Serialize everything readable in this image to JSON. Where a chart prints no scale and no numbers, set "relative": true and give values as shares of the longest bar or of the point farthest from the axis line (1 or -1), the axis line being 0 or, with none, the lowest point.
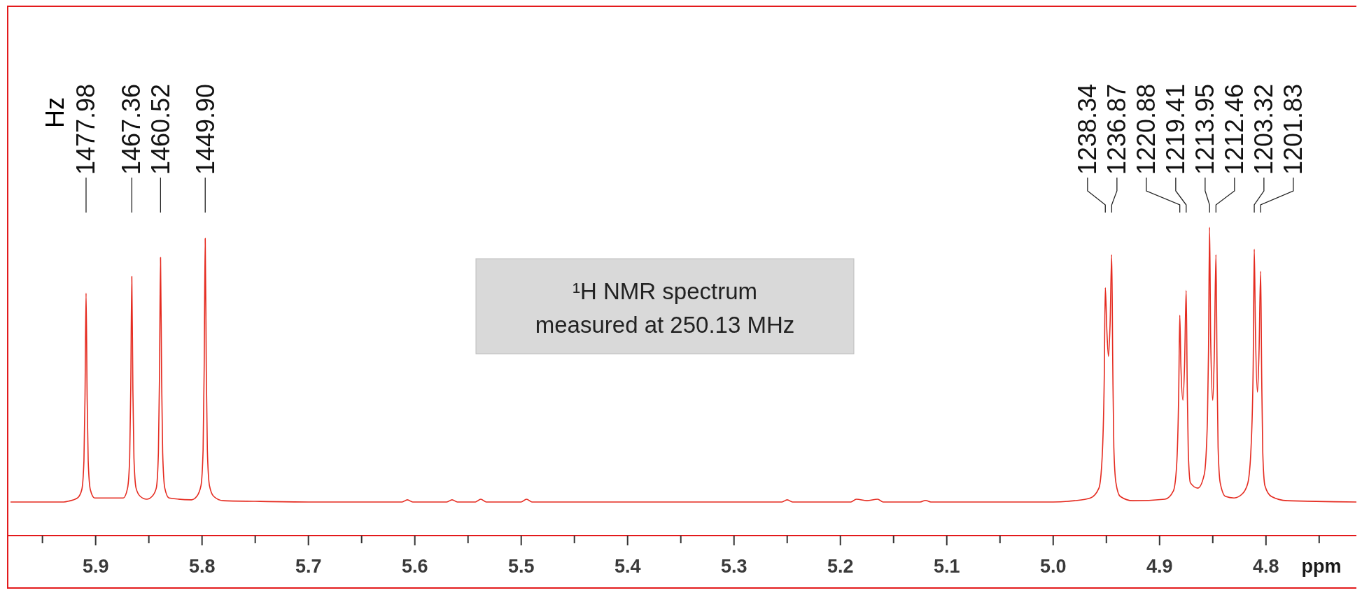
{
  "chart_data": {
    "type": "line",
    "relative": true,
    "xlabel": "ppm",
    "xlim": [
      5.982,
      4.715
    ],
    "xticks": [
      {
        "value": 5.95,
        "label": null
      },
      5.9,
      {
        "value": 5.85,
        "label": null
      },
      5.8,
      {
        "value": 5.75,
        "label": null
      },
      5.7,
      {
        "value": 5.65,
        "label": null
      },
      5.6,
      {
        "value": 5.55,
        "label": null
      },
      5.5,
      {
        "value": 5.45,
        "label": null
      },
      5.4,
      {
        "value": 5.35,
        "label": null
      },
      5.3,
      {
        "value": 5.25,
        "label": null
      },
      5.2,
      {
        "value": 5.15,
        "label": null
      },
      5.1,
      {
        "value": 5.05,
        "label": null
      },
      {
        "value": 5,
        "label": "5.0"
      },
      {
        "value": 4.95,
        "label": null
      },
      4.9,
      {
        "value": 4.85,
        "label": null
      },
      4.8,
      {
        "value": 4.75,
        "label": null
      }
    ],
    "series": [
      {
        "color": "#e52b20",
        "x": [
          5.98,
          5.93,
          5.925,
          5.917,
          5.913,
          5.911,
          5.91,
          5.909,
          5.908,
          5.907,
          5.905,
          5.901,
          5.874,
          5.87,
          5.868,
          5.867,
          5.866,
          5.865,
          5.864,
          5.862,
          5.858,
          5.852,
          5.847,
          5.843,
          5.841,
          5.84,
          5.839,
          5.838,
          5.837,
          5.835,
          5.831,
          5.81,
          5.805,
          5.801,
          5.799,
          5.798,
          5.797,
          5.796,
          5.795,
          5.793,
          5.789,
          5.78,
          5.75,
          5.7,
          5.612,
          5.607,
          5.602,
          5.57,
          5.565,
          5.56,
          5.543,
          5.538,
          5.533,
          5.5,
          5.495,
          5.49,
          5.3,
          5.255,
          5.25,
          5.245,
          5.19,
          5.185,
          5.175,
          5.165,
          5.16,
          5.125,
          5.12,
          5.115,
          5.0,
          4.98,
          4.965,
          4.957,
          4.954,
          4.952,
          4.951,
          4.9495,
          4.948,
          4.9465,
          4.945,
          4.944,
          4.943,
          4.941,
          4.937,
          4.925,
          4.895,
          4.887,
          4.884,
          4.882,
          4.881,
          4.88,
          4.878,
          4.8765,
          4.875,
          4.874,
          4.873,
          4.871,
          4.864,
          4.858,
          4.855,
          4.854,
          4.853,
          4.852,
          4.85,
          4.8485,
          4.847,
          4.846,
          4.845,
          4.843,
          4.838,
          4.83,
          4.822,
          4.817,
          4.814,
          4.812,
          4.811,
          4.81,
          4.808,
          4.8065,
          4.805,
          4.804,
          4.803,
          4.801,
          4.795,
          4.78,
          4.715
        ],
        "values": [
          0.109,
          0.109,
          0.112,
          0.122,
          0.149,
          0.243,
          0.448,
          0.786,
          0.448,
          0.243,
          0.149,
          0.122,
          0.122,
          0.154,
          0.252,
          0.474,
          0.84,
          0.474,
          0.252,
          0.154,
          0.127,
          0.118,
          0.127,
          0.154,
          0.269,
          0.51,
          0.902,
          0.51,
          0.269,
          0.154,
          0.122,
          0.116,
          0.127,
          0.162,
          0.278,
          0.537,
          0.964,
          0.537,
          0.278,
          0.162,
          0.127,
          0.113,
          0.111,
          0.109,
          0.109,
          0.116,
          0.109,
          0.109,
          0.116,
          0.109,
          0.109,
          0.118,
          0.109,
          0.109,
          0.118,
          0.109,
          0.109,
          0.109,
          0.116,
          0.109,
          0.109,
          0.118,
          0.113,
          0.118,
          0.109,
          0.109,
          0.114,
          0.109,
          0.109,
          0.113,
          0.122,
          0.154,
          0.252,
          0.51,
          0.804,
          0.661,
          0.581,
          0.688,
          0.911,
          0.555,
          0.287,
          0.171,
          0.127,
          0.113,
          0.118,
          0.145,
          0.225,
          0.465,
          0.715,
          0.555,
          0.439,
          0.555,
          0.795,
          0.483,
          0.269,
          0.171,
          0.154,
          0.198,
          0.376,
          0.599,
          1,
          0.644,
          0.439,
          0.599,
          0.911,
          0.555,
          0.287,
          0.171,
          0.127,
          0.122,
          0.136,
          0.171,
          0.287,
          0.555,
          0.929,
          0.688,
          0.465,
          0.599,
          0.857,
          0.51,
          0.269,
          0.162,
          0.127,
          0.113,
          0.109
        ]
      }
    ],
    "annotations": [
      "Hz",
      "¹H NMR spectrum\nmeasured at 250.13 MHz",
      {
        "text": "1477.98",
        "x": 5.909
      },
      {
        "text": "1467.36",
        "x": 5.866
      },
      {
        "text": "1460.52",
        "x": 5.839
      },
      {
        "text": "1449.90",
        "x": 5.797
      },
      {
        "text": "1238.34",
        "x": 4.951
      },
      {
        "text": "1236.87",
        "x": 4.945
      },
      {
        "text": "1220.88",
        "x": 4.881
      },
      {
        "text": "1219.41",
        "x": 4.875
      },
      {
        "text": "1213.95",
        "x": 4.853
      },
      {
        "text": "1212.46",
        "x": 4.847
      },
      {
        "text": "1203.32",
        "x": 4.811
      },
      {
        "text": "1201.83",
        "x": 4.805
      }
    ]
  }
}
